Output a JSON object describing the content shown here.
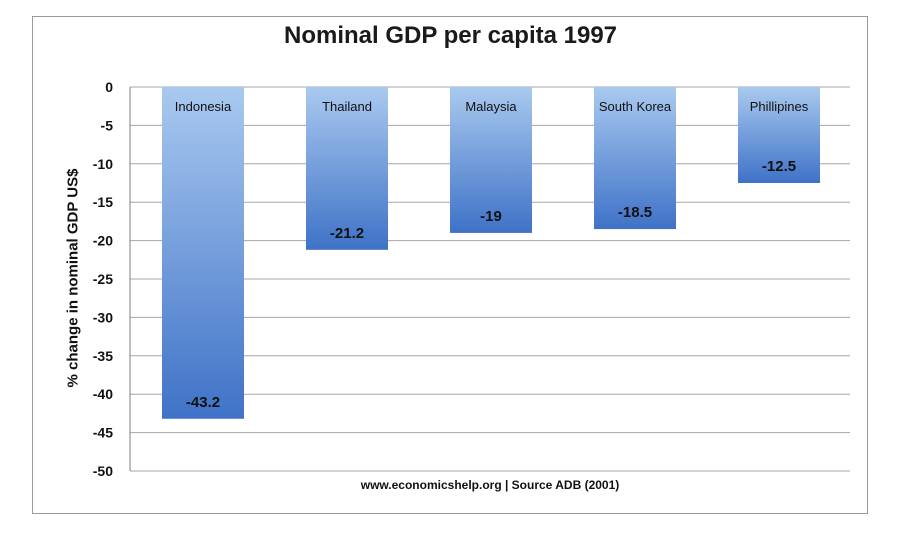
{
  "chart_data": {
    "type": "bar",
    "title": "Nominal GDP per capita 1997",
    "ylabel": "% change in nominal GDP US$",
    "xlabel": "",
    "footer": "www.economicshelp.org | Source ADB (2001)",
    "categories": [
      "Indonesia",
      "Thailand",
      "Malaysia",
      "South Korea",
      "Phillipines"
    ],
    "values": [
      -43.2,
      -21.2,
      -19,
      -18.5,
      -12.5
    ],
    "value_labels": [
      "-43.2",
      "-21.2",
      "-19",
      "-18.5",
      "-12.5"
    ],
    "ylim": [
      -50,
      0
    ],
    "yticks": [
      0,
      -5,
      -10,
      -15,
      -20,
      -25,
      -30,
      -35,
      -40,
      -45,
      -50
    ],
    "ytick_labels": [
      "0",
      "-5",
      "-10",
      "-15",
      "-20",
      "-25",
      "-30",
      "-35",
      "-40",
      "-45",
      "-50"
    ],
    "grid": true,
    "colors": {
      "bar_top": "#a9c9ef",
      "bar_bottom": "#3f72c7",
      "grid": "#a6a6a6",
      "axis": "#7f7f7f"
    }
  }
}
